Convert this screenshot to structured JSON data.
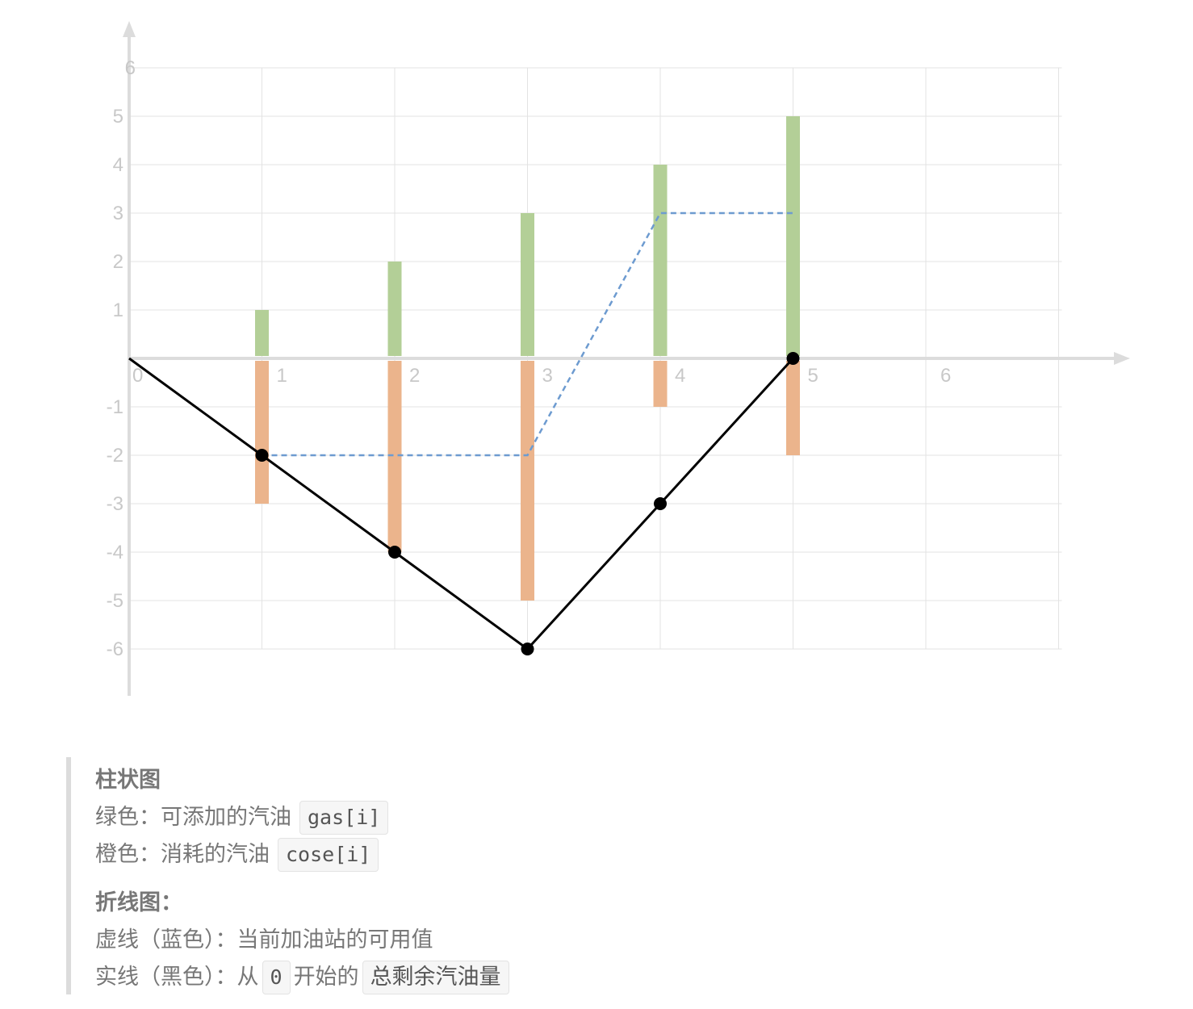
{
  "chart_data": {
    "type": "bar",
    "x_ticks": [
      "0",
      "1",
      "2",
      "3",
      "4",
      "5",
      "6"
    ],
    "y_ticks_pos": [
      "1",
      "2",
      "3",
      "4",
      "5",
      "6"
    ],
    "y_ticks_neg": [
      "-1",
      "-2",
      "-3",
      "-4",
      "-5",
      "-6"
    ],
    "xlim": [
      0,
      7
    ],
    "ylim": [
      -6,
      6
    ],
    "grid": true,
    "colors": {
      "gas": "#b3cf97",
      "cost": "#ebb48c",
      "available": "#6d9bd0",
      "total": "#000000"
    },
    "bars_gas": {
      "x": [
        1,
        2,
        3,
        4,
        5
      ],
      "values": [
        1,
        2,
        3,
        4,
        5
      ]
    },
    "bars_cost": {
      "x": [
        1,
        2,
        3,
        4,
        5
      ],
      "values": [
        -3,
        -4,
        -5,
        -1,
        -2
      ]
    },
    "line_available": {
      "style": "dashed",
      "x": [
        1,
        3,
        4,
        5
      ],
      "values": [
        -2,
        -2,
        3,
        3
      ]
    },
    "line_total": {
      "style": "solid",
      "x": [
        0,
        1,
        2,
        3,
        4,
        5
      ],
      "values": [
        0,
        -2,
        -4,
        -6,
        -3,
        0
      ],
      "markers": [
        false,
        true,
        true,
        true,
        true,
        true
      ]
    }
  },
  "legend": {
    "bar_title": "柱状图",
    "green_label": "绿色：可添加的汽油",
    "green_code": "gas[i]",
    "orange_label": "橙色：消耗的汽油",
    "orange_code": "cose[i]",
    "line_title": "折线图：",
    "dashed_label": "虚线（蓝色）：当前加油站的可用值",
    "solid_label": "实线（黑色）：从",
    "solid_zero": "0",
    "solid_mid": "开始的",
    "solid_term": "总剩余汽油量"
  }
}
